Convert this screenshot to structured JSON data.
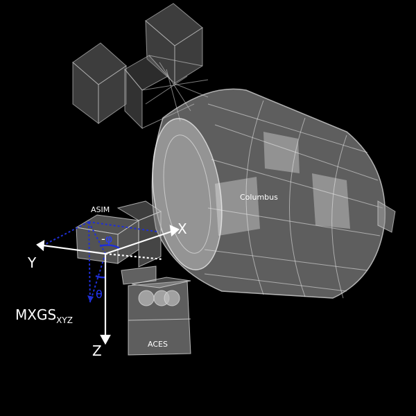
{
  "labels": {
    "asim": "ASIM",
    "columbus": "Columbus",
    "aces": "ACES",
    "x_axis": "X",
    "y_axis": "Y",
    "z_axis": "Z",
    "mxgs": "MXGS",
    "mxgs_subscript": "XYZ",
    "phi": "φ",
    "phi_sign": "-",
    "theta": "θ"
  },
  "colors": {
    "background": "#000000",
    "wireframe": "#dcdcdc",
    "axis_white": "#ffffff",
    "angle_blue": "#1f2fd6"
  }
}
